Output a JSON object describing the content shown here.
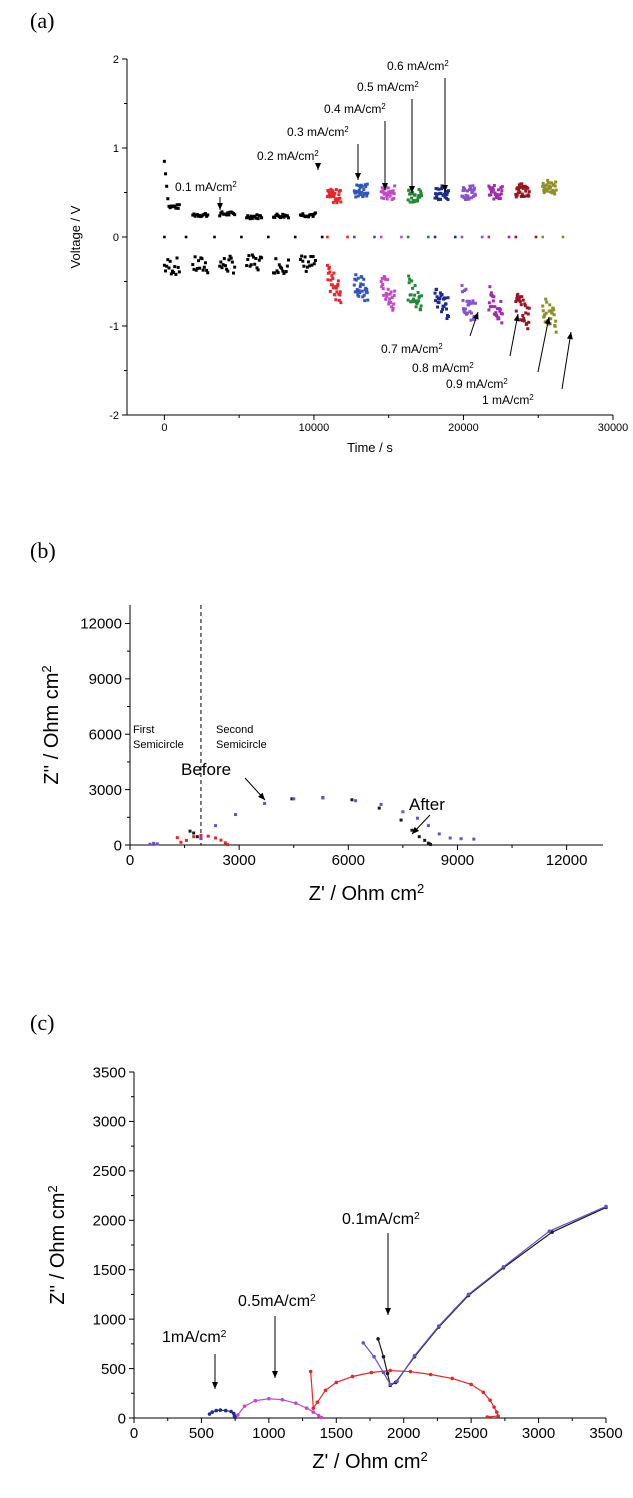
{
  "figure": {
    "panel_labels": [
      "(a)",
      "(b)",
      "(c)"
    ]
  },
  "chart_data": [
    {
      "panel": "(a)",
      "type": "scatter",
      "xlabel": "Time / s",
      "ylabel": "Voltage / V",
      "xlim": [
        -2500,
        30000
      ],
      "ylim": [
        -2,
        2
      ],
      "xticks": [
        0,
        10000,
        20000,
        30000
      ],
      "yticks": [
        -2,
        -1,
        0,
        1,
        2
      ],
      "grid": false,
      "series": [
        {
          "label": "0.1 mA/cm²",
          "color": "#000000",
          "marker": "square",
          "pulses": [
            {
              "t0": 0,
              "t1": 1000,
              "pos": 0.34,
              "neg": -0.33,
              "pos_start": 0.85
            },
            {
              "t0": 1900,
              "t1": 2900,
              "pos": 0.25,
              "neg": -0.32
            },
            {
              "t0": 3700,
              "t1": 4700,
              "pos": 0.26,
              "neg": -0.31
            },
            {
              "t0": 5500,
              "t1": 6500,
              "pos": 0.23,
              "neg": -0.3
            },
            {
              "t0": 7300,
              "t1": 8300,
              "pos": 0.24,
              "neg": -0.31
            },
            {
              "t0": 9100,
              "t1": 10100,
              "pos": 0.25,
              "neg": -0.3
            }
          ]
        },
        {
          "label": "0.2 mA/cm²",
          "color": "#e8262a",
          "marker": "circle",
          "t0": 10900,
          "t1": 11800,
          "pos": 0.46,
          "neg": -0.45
        },
        {
          "label": "0.3 mA/cm²",
          "color": "#2f56b8",
          "marker": "triangle-up",
          "t0": 12700,
          "t1": 13600,
          "pos": 0.52,
          "neg": -0.47
        },
        {
          "label": "0.4 mA/cm²",
          "color": "#c547c8",
          "marker": "triangle-down",
          "t0": 14500,
          "t1": 15400,
          "pos": 0.5,
          "neg": -0.52
        },
        {
          "label": "0.5 mA/cm²",
          "color": "#1f8a32",
          "marker": "diamond",
          "t0": 16300,
          "t1": 17200,
          "pos": 0.47,
          "neg": -0.57
        },
        {
          "label": "0.6 mA/cm²",
          "color": "#1d2b8c",
          "marker": "triangle-left",
          "t0": 18100,
          "t1": 19000,
          "pos": 0.5,
          "neg": -0.63
        },
        {
          "label": "0.7 mA/cm²",
          "color": "#8a4fd0",
          "marker": "triangle-right",
          "t0": 19900,
          "t1": 20800,
          "pos": 0.5,
          "neg": -0.67
        },
        {
          "label": "0.8 mA/cm²",
          "color": "#a12ab0",
          "marker": "hexagon",
          "t0": 21700,
          "t1": 22600,
          "pos": 0.5,
          "neg": -0.68
        },
        {
          "label": "0.9 mA/cm²",
          "color": "#9a1422",
          "marker": "circle",
          "t0": 23500,
          "t1": 24400,
          "pos": 0.52,
          "neg": -0.72
        },
        {
          "label": "1 mA/cm²",
          "color": "#8e8e2a",
          "marker": "circle",
          "t0": 25300,
          "t1": 26200,
          "pos": 0.56,
          "neg": -0.78
        }
      ],
      "annotations": [
        "0.1 mA/cm²",
        "0.2 mA/cm²",
        "0.3 mA/cm²",
        "0.4 mA/cm²",
        "0.5 mA/cm²",
        "0.6 mA/cm²",
        "0.7 mA/cm²",
        "0.8 mA/cm²",
        "0.9 mA/cm²",
        "1 mA/cm²"
      ]
    },
    {
      "panel": "(b)",
      "type": "scatter",
      "xlabel": "Z' / Ohm cm²",
      "ylabel": "Z'' / Ohm cm²",
      "xlim": [
        0,
        13000
      ],
      "ylim": [
        0,
        13000
      ],
      "xticks": [
        0,
        3000,
        6000,
        9000,
        12000
      ],
      "yticks": [
        0,
        3000,
        6000,
        9000,
        12000
      ],
      "divider_x": 1950,
      "region_labels": [
        "First Semicircle",
        "Second Semicircle"
      ],
      "annotations": [
        "Before",
        "After"
      ],
      "series": [
        {
          "name": "",
          "color": "#1a1a1a",
          "x": [
            1650,
            1750,
            1850,
            1950,
            4450,
            5300,
            6100,
            6850,
            7450,
            7750,
            7950,
            8100,
            8200,
            8230,
            8260
          ],
          "y": [
            750,
            650,
            450,
            350,
            2500,
            2560,
            2450,
            2000,
            1350,
            800,
            450,
            250,
            100,
            60,
            30
          ]
        },
        {
          "name": "",
          "color": "#6a4fc8",
          "x": [
            550,
            650,
            750,
            1950,
            2350,
            2900,
            3700,
            4500,
            5300,
            6200,
            6900,
            7500,
            7900,
            8200,
            8500,
            8800,
            9100,
            9450
          ],
          "y": [
            40,
            90,
            60,
            350,
            1050,
            1650,
            2250,
            2500,
            2560,
            2400,
            2200,
            1800,
            1450,
            1050,
            600,
            380,
            340,
            320
          ]
        },
        {
          "name": "",
          "color": "#e8262a",
          "x": [
            1300,
            1400,
            1550,
            1750,
            1950,
            2150,
            2350,
            2500,
            2620,
            2680
          ],
          "y": [
            400,
            150,
            250,
            450,
            520,
            480,
            380,
            260,
            120,
            20
          ]
        }
      ]
    },
    {
      "panel": "(c)",
      "type": "line",
      "xlabel": "Z' / Ohm cm²",
      "ylabel": "Z'' / Ohm cm²",
      "xlim": [
        0,
        3500
      ],
      "ylim": [
        0,
        3500
      ],
      "xticks": [
        0,
        500,
        1000,
        1500,
        2000,
        2500,
        3000,
        3500
      ],
      "yticks": [
        0,
        500,
        1000,
        1500,
        2000,
        2500,
        3000,
        3500
      ],
      "annotations": [
        "1mA/cm²",
        "0.5mA/cm²",
        "0.1mA/cm²"
      ],
      "series": [
        {
          "name": "",
          "color": "#1d2b8c",
          "x": [
            560,
            580,
            610,
            640,
            680,
            720,
            740,
            745,
            750
          ],
          "y": [
            40,
            60,
            75,
            80,
            75,
            65,
            45,
            20,
            5
          ]
        },
        {
          "name": "",
          "color": "#c547c8",
          "x": [
            770,
            820,
            900,
            1000,
            1100,
            1200,
            1280,
            1330,
            1370,
            1390
          ],
          "y": [
            30,
            120,
            175,
            195,
            185,
            150,
            100,
            60,
            25,
            5
          ]
        },
        {
          "name": "",
          "color": "#e8262a",
          "x": [
            1310,
            1330,
            1360,
            1420,
            1500,
            1620,
            1760,
            1900,
            2050,
            2200,
            2360,
            2500,
            2590,
            2640,
            2670,
            2690,
            2700,
            2620
          ],
          "y": [
            470,
            100,
            160,
            280,
            360,
            420,
            460,
            480,
            470,
            440,
            400,
            340,
            260,
            180,
            110,
            60,
            20,
            10
          ]
        },
        {
          "name": "",
          "color": "#1a1a1a",
          "x": [
            1810,
            1850,
            1880,
            1900,
            1940,
            2080,
            2260,
            2480,
            2740,
            3100,
            3500
          ],
          "y": [
            800,
            620,
            450,
            330,
            360,
            620,
            920,
            1240,
            1520,
            1880,
            2130
          ]
        },
        {
          "name": "",
          "color": "#6a4fc8",
          "x": [
            1700,
            1780,
            1850,
            1900,
            1950,
            2080,
            2260,
            2480,
            2740,
            3080,
            3500
          ],
          "y": [
            760,
            620,
            460,
            340,
            370,
            630,
            930,
            1250,
            1530,
            1890,
            2140
          ]
        }
      ]
    }
  ]
}
